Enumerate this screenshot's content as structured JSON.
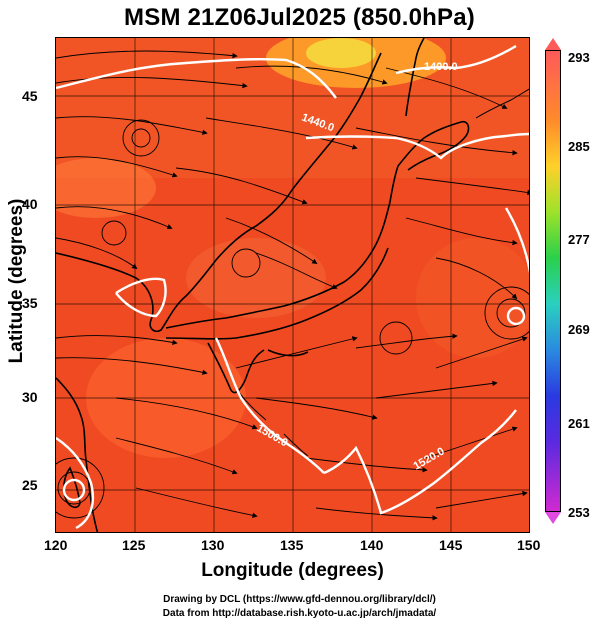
{
  "title": "MSM 21Z06Jul2025 (850.0hPa)",
  "xlabel": "Longitude (degrees)",
  "ylabel": "Latitude  (degrees)",
  "x_ticks": [
    "120",
    "125",
    "130",
    "135",
    "140",
    "145",
    "150"
  ],
  "y_ticks": [
    "25",
    "30",
    "35",
    "40",
    "45"
  ],
  "colorbar": {
    "labels": [
      "293",
      "285",
      "277",
      "269",
      "261",
      "253"
    ],
    "top_color": "#ff5a5a",
    "bottom_color": "#e04ae0"
  },
  "contour_labels": [
    "1400.0",
    "1440.0",
    "1500.0",
    "1520.0"
  ],
  "credits": [
    "Drawing by DCL (https://www.gfd-dennou.org/library/dcl/)",
    "Data from http://database.rish.kyoto-u.ac.jp/arch/jmadata/"
  ],
  "colors": {
    "field": "#f04a22",
    "field_light": "#ff7a3a",
    "coast": "#000000",
    "contour": "#ffffff",
    "stream": "#000000"
  }
}
